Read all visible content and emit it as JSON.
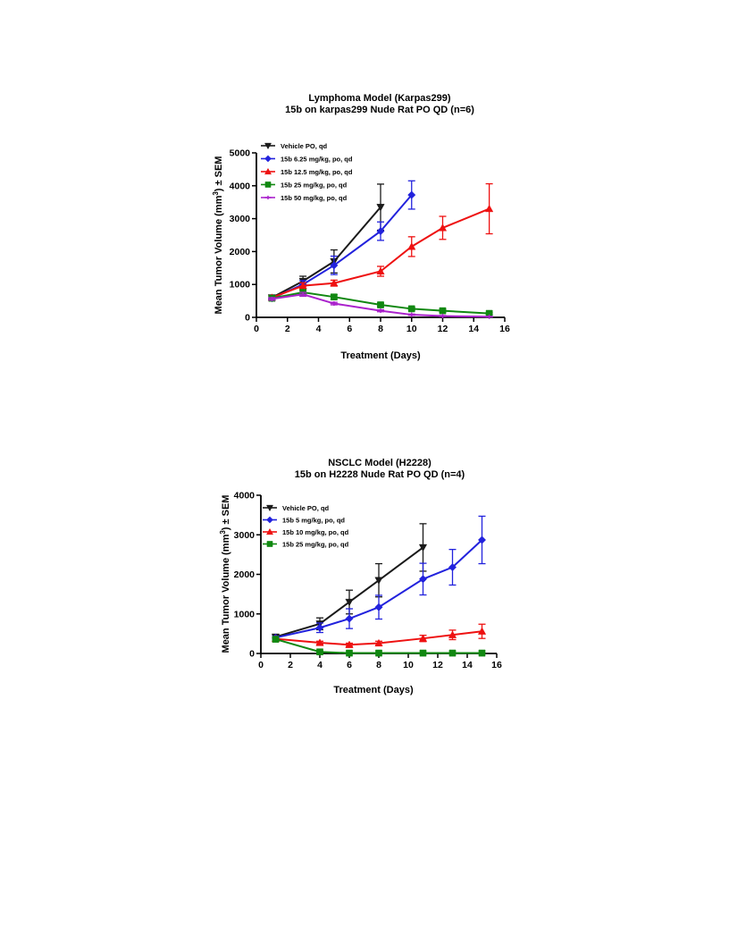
{
  "chart_data": [
    {
      "type": "line",
      "title": "Lymphoma Model (Karpas299)",
      "subtitle": "15b on  karpas299 Nude Rat PO QD (n=6)",
      "xlabel": "Treatment  (Days)",
      "ylabel_main": "Mean Tumor Volume (mm",
      "ylabel_sup": "3",
      "ylabel_tail": ") ± SEM",
      "xlim": [
        0,
        16
      ],
      "ylim": [
        0,
        5000
      ],
      "xticks": [
        0,
        2,
        4,
        6,
        8,
        10,
        12,
        14,
        16
      ],
      "xtick_labels": [
        "0",
        "2",
        "4",
        "6",
        "8",
        "10",
        "12",
        "14",
        "16"
      ],
      "yticks": [
        0,
        1000,
        2000,
        3000,
        4000,
        5000
      ],
      "ytick_labels": [
        "0",
        "1000",
        "2000",
        "3000",
        "4000",
        "5000"
      ],
      "legend_position": "top-left",
      "grid": false,
      "series": [
        {
          "name": "Vehicle PO, qd",
          "color": "#1a1a1a",
          "marker": "triangle-down",
          "x": [
            1,
            3,
            5,
            8
          ],
          "y": [
            600,
            1100,
            1700,
            3350
          ],
          "err": [
            60,
            150,
            350,
            700
          ]
        },
        {
          "name": "15b  6.25 mg/kg, po, qd",
          "color": "#2222dd",
          "marker": "diamond",
          "x": [
            1,
            3,
            5,
            8,
            10
          ],
          "y": [
            580,
            1000,
            1580,
            2620,
            3720
          ],
          "err": [
            50,
            120,
            280,
            280,
            430
          ]
        },
        {
          "name": "15b 12.5 mg/kg, po, qd",
          "color": "#ee1111",
          "marker": "triangle-up",
          "x": [
            1,
            3,
            5,
            8,
            10,
            12,
            15
          ],
          "y": [
            600,
            960,
            1040,
            1400,
            2150,
            2720,
            3300
          ],
          "err": [
            50,
            90,
            90,
            150,
            300,
            350,
            760
          ]
        },
        {
          "name": "15b  25 mg/kg, po, qd",
          "color": "#118811",
          "marker": "square",
          "x": [
            1,
            3,
            5,
            8,
            10,
            12,
            15
          ],
          "y": [
            580,
            760,
            620,
            380,
            260,
            200,
            120
          ],
          "err": [
            40,
            70,
            70,
            50,
            40,
            40,
            30
          ]
        },
        {
          "name": "15b 50 mg/kg, po, qd",
          "color": "#aa22cc",
          "marker": "plus",
          "x": [
            1,
            3,
            5,
            8,
            10,
            12,
            15
          ],
          "y": [
            560,
            700,
            420,
            200,
            80,
            40,
            20
          ],
          "err": [
            40,
            60,
            40,
            30,
            20,
            15,
            10
          ]
        }
      ]
    },
    {
      "type": "line",
      "title": "NSCLC Model (H2228)",
      "subtitle": "15b on H2228 Nude Rat PO QD (n=4)",
      "xlabel": "Treatment  (Days)",
      "ylabel_main": "Mean Tumor Volume (mm",
      "ylabel_sup": "3",
      "ylabel_tail": ") ± SEM",
      "xlim": [
        0,
        16
      ],
      "ylim": [
        0,
        4000
      ],
      "xticks": [
        0,
        2,
        4,
        6,
        8,
        10,
        12,
        14,
        16
      ],
      "xtick_labels": [
        "0",
        "2",
        "4",
        "6",
        "8",
        "10",
        "12",
        "14",
        "16"
      ],
      "yticks": [
        0,
        1000,
        2000,
        3000,
        4000
      ],
      "ytick_labels": [
        "0",
        "1000",
        "2000",
        "3000",
        "4000"
      ],
      "legend_position": "top-left",
      "grid": false,
      "series": [
        {
          "name": "Vehicle PO, qd",
          "color": "#1a1a1a",
          "marker": "triangle-down",
          "x": [
            1,
            4,
            6,
            8,
            11
          ],
          "y": [
            420,
            750,
            1300,
            1850,
            2680
          ],
          "err": [
            50,
            150,
            300,
            420,
            600
          ]
        },
        {
          "name": "15b  5 mg/kg, po, qd",
          "color": "#2222dd",
          "marker": "diamond",
          "x": [
            1,
            4,
            6,
            8,
            11,
            13,
            15
          ],
          "y": [
            400,
            650,
            880,
            1170,
            1880,
            2180,
            2870
          ],
          "err": [
            40,
            120,
            250,
            300,
            400,
            450,
            600
          ]
        },
        {
          "name": "15b 10 mg/kg, po, qd",
          "color": "#ee1111",
          "marker": "triangle-up",
          "x": [
            1,
            4,
            6,
            8,
            11,
            13,
            15
          ],
          "y": [
            370,
            270,
            220,
            260,
            380,
            470,
            560
          ],
          "err": [
            40,
            40,
            40,
            50,
            80,
            120,
            180
          ]
        },
        {
          "name": "15b 25 mg/kg, po, qd",
          "color": "#118811",
          "marker": "square",
          "x": [
            1,
            4,
            6,
            8,
            11,
            13,
            15
          ],
          "y": [
            360,
            40,
            10,
            10,
            10,
            10,
            10
          ],
          "err": [
            30,
            20,
            5,
            5,
            5,
            5,
            5
          ]
        }
      ]
    }
  ]
}
